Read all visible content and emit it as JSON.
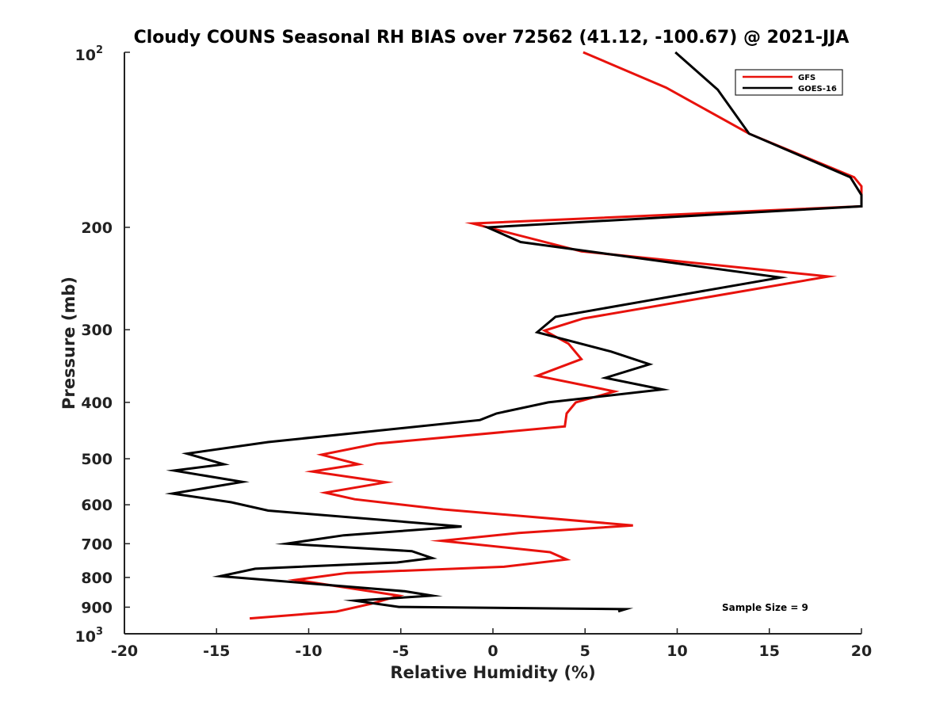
{
  "chart_data": {
    "type": "line",
    "title": "Cloudy COUNS Seasonal RH BIAS over 72562 (41.12, -100.67) @ 2021-JJA",
    "xlabel": "Relative Humidity (%)",
    "ylabel": "Pressure (mb)",
    "xlim": [
      -20,
      20
    ],
    "ylim": [
      100,
      1000
    ],
    "yscale": "log",
    "y_reversed": true,
    "xticks": [
      -20,
      -15,
      -10,
      -5,
      0,
      5,
      10,
      15,
      20
    ],
    "xtick_labels": [
      "-20",
      "-15",
      "-10",
      "-5",
      "0",
      "5",
      "10",
      "15",
      "20"
    ],
    "yticks": [
      200,
      300,
      400,
      500,
      600,
      700,
      800,
      900
    ],
    "ytick_labels": [
      "200",
      "300",
      "400",
      "500",
      "600",
      "700",
      "800",
      "900"
    ],
    "ytick_top": {
      "base": "10",
      "exp": "2"
    },
    "ytick_bottom": {
      "base": "10",
      "exp": "3"
    },
    "grid": false,
    "legend_position": "top-right",
    "annotation": "Sample Size = 9",
    "series": [
      {
        "name": "GFS",
        "color": "#e8120c",
        "points": [
          {
            "x": 4.9,
            "y": 100
          },
          {
            "x": 9.4,
            "y": 115
          },
          {
            "x": 13.9,
            "y": 138
          },
          {
            "x": 19.6,
            "y": 164
          },
          {
            "x": 20.0,
            "y": 170
          },
          {
            "x": 20.0,
            "y": 184
          },
          {
            "x": -1.1,
            "y": 197
          },
          {
            "x": 4.8,
            "y": 220
          },
          {
            "x": 18.2,
            "y": 243
          },
          {
            "x": 4.9,
            "y": 287
          },
          {
            "x": 2.8,
            "y": 301
          },
          {
            "x": 4.1,
            "y": 317
          },
          {
            "x": 4.8,
            "y": 337
          },
          {
            "x": 2.4,
            "y": 360
          },
          {
            "x": 6.6,
            "y": 383
          },
          {
            "x": 4.5,
            "y": 400
          },
          {
            "x": 4.0,
            "y": 418
          },
          {
            "x": 3.9,
            "y": 440
          },
          {
            "x": -6.3,
            "y": 471
          },
          {
            "x": -9.3,
            "y": 492
          },
          {
            "x": -7.3,
            "y": 511
          },
          {
            "x": -9.8,
            "y": 526
          },
          {
            "x": -5.8,
            "y": 549
          },
          {
            "x": -9.1,
            "y": 572
          },
          {
            "x": -7.5,
            "y": 587
          },
          {
            "x": -2.7,
            "y": 611
          },
          {
            "x": 7.6,
            "y": 651
          },
          {
            "x": 1.4,
            "y": 671
          },
          {
            "x": -2.8,
            "y": 692
          },
          {
            "x": 3.1,
            "y": 724
          },
          {
            "x": 4.0,
            "y": 745
          },
          {
            "x": 0.6,
            "y": 767
          },
          {
            "x": -7.9,
            "y": 786
          },
          {
            "x": -10.7,
            "y": 808
          },
          {
            "x": -5.1,
            "y": 860
          },
          {
            "x": -6.6,
            "y": 888
          },
          {
            "x": -8.5,
            "y": 916
          },
          {
            "x": -13.2,
            "y": 941
          }
        ]
      },
      {
        "name": "GOES-16",
        "color": "#000000",
        "points": [
          {
            "x": 9.9,
            "y": 100
          },
          {
            "x": 12.2,
            "y": 116
          },
          {
            "x": 13.9,
            "y": 138
          },
          {
            "x": 19.4,
            "y": 164
          },
          {
            "x": 20.0,
            "y": 176
          },
          {
            "x": 20.0,
            "y": 184
          },
          {
            "x": -0.3,
            "y": 200
          },
          {
            "x": 1.5,
            "y": 212
          },
          {
            "x": 15.6,
            "y": 244
          },
          {
            "x": 8.2,
            "y": 268
          },
          {
            "x": 3.4,
            "y": 285
          },
          {
            "x": 2.4,
            "y": 303
          },
          {
            "x": 6.4,
            "y": 327
          },
          {
            "x": 8.5,
            "y": 344
          },
          {
            "x": 6.1,
            "y": 363
          },
          {
            "x": 9.2,
            "y": 380
          },
          {
            "x": 3.0,
            "y": 400
          },
          {
            "x": 0.2,
            "y": 418
          },
          {
            "x": -0.7,
            "y": 429
          },
          {
            "x": -12.2,
            "y": 468
          },
          {
            "x": -16.6,
            "y": 490
          },
          {
            "x": -14.6,
            "y": 511
          },
          {
            "x": -17.3,
            "y": 524
          },
          {
            "x": -13.6,
            "y": 548
          },
          {
            "x": -17.4,
            "y": 574
          },
          {
            "x": -14.2,
            "y": 594
          },
          {
            "x": -12.2,
            "y": 614
          },
          {
            "x": -1.7,
            "y": 654
          },
          {
            "x": -8.1,
            "y": 677
          },
          {
            "x": -11.2,
            "y": 700
          },
          {
            "x": -4.4,
            "y": 721
          },
          {
            "x": -3.3,
            "y": 741
          },
          {
            "x": -5.2,
            "y": 754
          },
          {
            "x": -12.9,
            "y": 773
          },
          {
            "x": -14.8,
            "y": 796
          },
          {
            "x": -4.8,
            "y": 845
          },
          {
            "x": -3.3,
            "y": 860
          },
          {
            "x": -7.5,
            "y": 877
          },
          {
            "x": -5.1,
            "y": 899
          },
          {
            "x": 7.2,
            "y": 907
          },
          {
            "x": 6.8,
            "y": 915
          }
        ]
      }
    ]
  }
}
